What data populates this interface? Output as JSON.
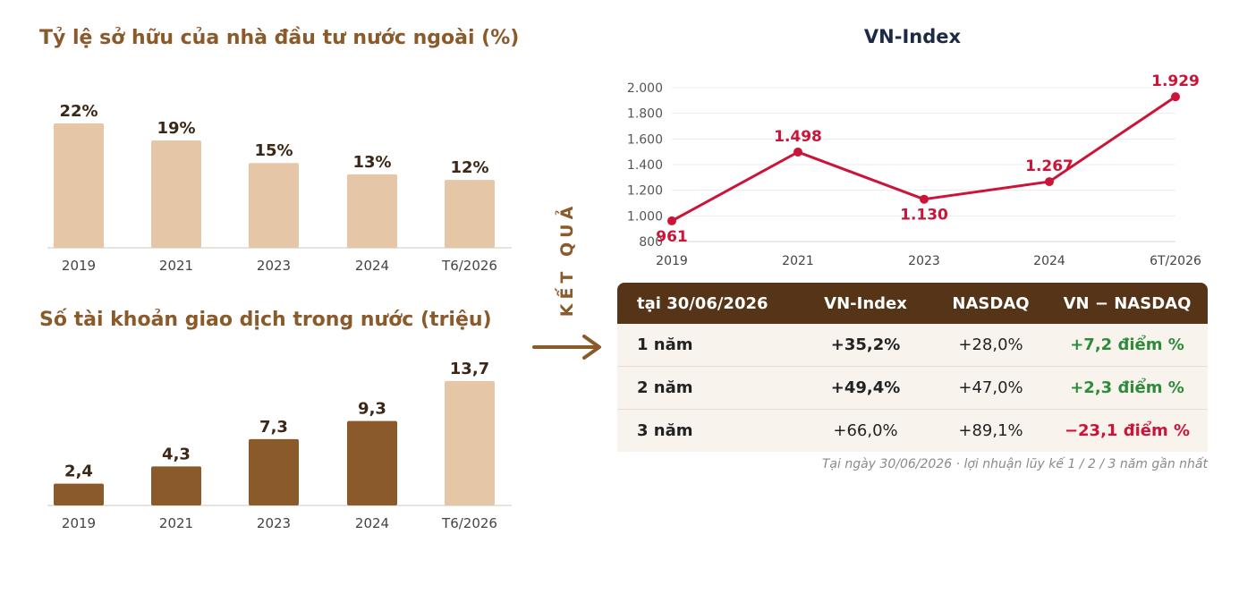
{
  "chart_data": [
    {
      "type": "bar",
      "title": "Tỷ lệ sở hữu của nhà đầu tư nước ngoài (%)",
      "categories": [
        "2019",
        "2021",
        "2023",
        "2024",
        "T6/2026"
      ],
      "values": [
        22,
        19,
        15,
        13,
        12
      ],
      "value_labels": [
        "22%",
        "19%",
        "15%",
        "13%",
        "12%"
      ],
      "color": "#e5c6a6",
      "ylim": [
        0,
        22
      ]
    },
    {
      "type": "bar",
      "title": "Số tài khoản giao dịch trong nước (triệu)",
      "categories": [
        "2019",
        "2021",
        "2023",
        "2024",
        "T6/2026"
      ],
      "values": [
        2.4,
        4.3,
        7.3,
        9.3,
        13.7
      ],
      "value_labels": [
        "2,4",
        "4,3",
        "7,3",
        "9,3",
        "13,7"
      ],
      "colors": [
        "#8b5a2b",
        "#8b5a2b",
        "#8b5a2b",
        "#8b5a2b",
        "#e5c6a6"
      ],
      "ylim": [
        0,
        13.7
      ]
    },
    {
      "type": "line",
      "title": "VN-Index",
      "categories": [
        "2019",
        "2021",
        "2023",
        "2024",
        "6T/2026"
      ],
      "values": [
        961,
        1498,
        1130,
        1267,
        1929
      ],
      "value_labels": [
        "961",
        "1.498",
        "1.130",
        "1.267",
        "1.929"
      ],
      "yticks": [
        800,
        1000,
        1200,
        1400,
        1600,
        1800,
        2000
      ],
      "ytick_labels": [
        "800",
        "1.000",
        "1.200",
        "1.400",
        "1.600",
        "1.800",
        "2.000"
      ],
      "ylim": [
        800,
        2000
      ],
      "color": "#cc1438",
      "grid": true
    }
  ],
  "side_label": "KẾT QUẢ",
  "table": {
    "headers": [
      "tại 30/06/2026",
      "VN-Index",
      "NASDAQ",
      "VN − NASDAQ"
    ],
    "rows": [
      {
        "period": "1 năm",
        "vn": "+35,2%",
        "nasdaq": "+28,0%",
        "diff": "+7,2 điểm %"
      },
      {
        "period": "2 năm",
        "vn": "+49,4%",
        "nasdaq": "+47,0%",
        "diff": "+2,3 điểm %"
      },
      {
        "period": "3 năm",
        "vn": "+66,0%",
        "nasdaq": "+89,1%",
        "diff": "−23,1 điểm %"
      }
    ],
    "footnote": "Tại ngày 30/06/2026 · lợi nhuận lũy kế 1 / 2 / 3 năm gần nhất"
  },
  "colors": {
    "brown_dark": "#8b5a2b",
    "beige": "#e5c6a6",
    "header_bg": "#563417",
    "positive": "#2e8b3a",
    "negative": "#cc1438",
    "line": "#cc1438"
  }
}
